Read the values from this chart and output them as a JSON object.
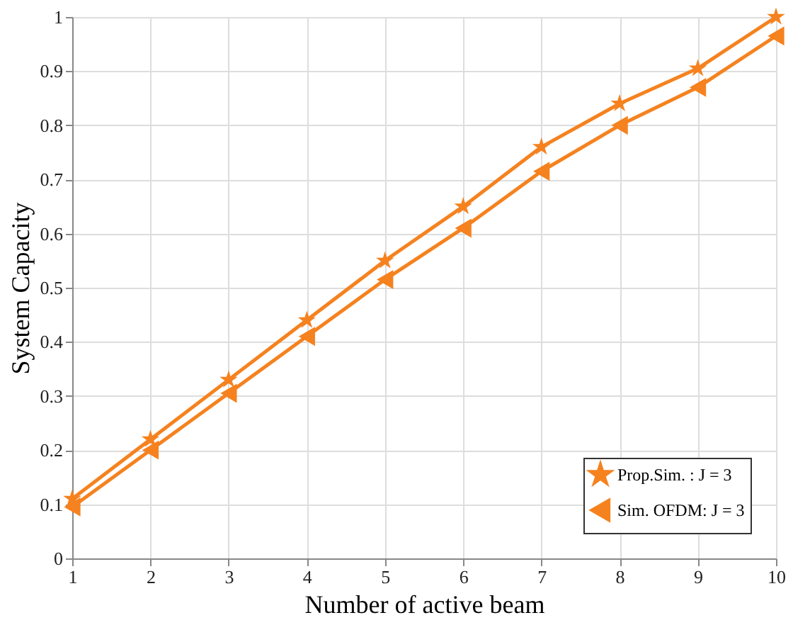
{
  "chart_data": {
    "type": "line",
    "xlabel": "Number of active beam",
    "ylabel": "System Capacity",
    "x": [
      1,
      2,
      3,
      4,
      5,
      6,
      7,
      8,
      9,
      10
    ],
    "series": [
      {
        "name": "Prop.Sim. : J = 3",
        "color": "#f5821f",
        "marker": "star",
        "values": [
          0.11,
          0.22,
          0.33,
          0.44,
          0.55,
          0.65,
          0.76,
          0.84,
          0.905,
          1.0
        ]
      },
      {
        "name": "Sim. OFDM: J = 3",
        "color": "#f5821f",
        "marker": "triangle-left",
        "values": [
          0.095,
          0.2,
          0.305,
          0.41,
          0.515,
          0.61,
          0.715,
          0.8,
          0.87,
          0.965
        ]
      }
    ],
    "xlim": [
      1,
      10
    ],
    "xticks": [
      1,
      2,
      3,
      4,
      5,
      6,
      7,
      8,
      9,
      10
    ],
    "ylim": [
      0,
      1
    ],
    "yticks": [
      0,
      0.1,
      0.2,
      0.3,
      0.4,
      0.5,
      0.6,
      0.7,
      0.8,
      0.9,
      1
    ],
    "grid": true,
    "legend": "bottom right",
    "line_style": "solid"
  }
}
